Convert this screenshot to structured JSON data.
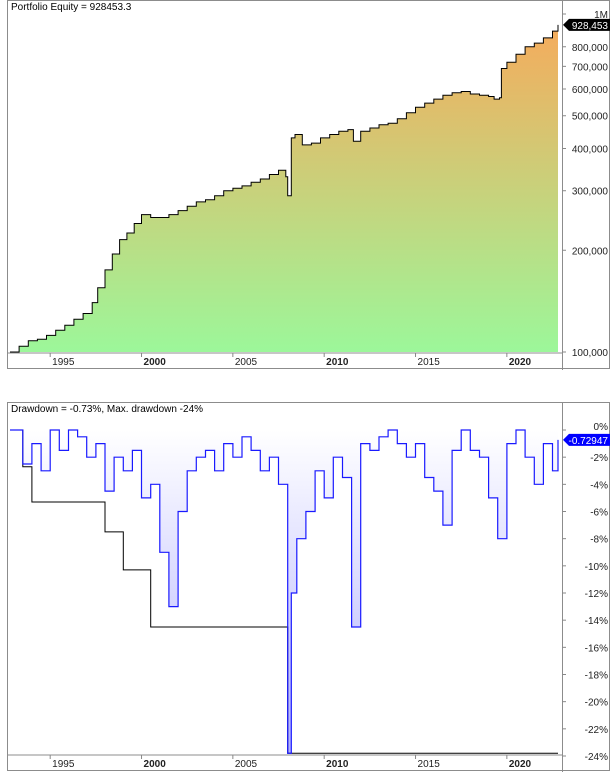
{
  "equity_panel": {
    "title": "Portfolio Equity = 928453.3",
    "last_value_label": "928,453",
    "last_value_bg": "#000000",
    "line_color": "#000000",
    "fill_top_color": "#f5ab5c",
    "fill_bottom_color": "#9cf79a",
    "y_ticks": [
      "1M",
      "800,000",
      "700,000",
      "600,000",
      "500,000",
      "400,000",
      "300,000",
      "200,000",
      "100,000"
    ]
  },
  "drawdown_panel": {
    "title": "Drawdown = -0.73%, Max. drawdown -24%",
    "last_value_label": "-0.72947",
    "last_value_bg": "#0000ff",
    "line_color": "#1a1aff",
    "fill_color": "#c8c8ff",
    "maxdd_line_color": "#000000",
    "y_ticks": [
      "0%",
      "-2%",
      "-4%",
      "-6%",
      "-8%",
      "-10%",
      "-12%",
      "-14%",
      "-16%",
      "-18%",
      "-20%",
      "-22%",
      "-24%"
    ]
  },
  "x_axis": {
    "labels": [
      {
        "text": "1995",
        "bold": false
      },
      {
        "text": "2000",
        "bold": true
      },
      {
        "text": "2005",
        "bold": false
      },
      {
        "text": "2010",
        "bold": true
      },
      {
        "text": "2015",
        "bold": false
      },
      {
        "text": "2020",
        "bold": true
      }
    ]
  },
  "chart_data": [
    {
      "type": "area",
      "title": "Portfolio Equity = 928453.3",
      "xlabel": "",
      "ylabel": "",
      "y_scale": "log",
      "ylim": [
        100000,
        1000000
      ],
      "xlim": [
        1992.8,
        2022.8
      ],
      "x_tick_labels": [
        "1995",
        "2000",
        "2005",
        "2010",
        "2015",
        "2020"
      ],
      "y_tick_labels": [
        "100,000",
        "200,000",
        "300,000",
        "400,000",
        "500,000",
        "600,000",
        "700,000",
        "800,000",
        "1M"
      ],
      "grid": false,
      "legend": "none",
      "last_value": 928453.3,
      "x": [
        1992.8,
        1993.3,
        1993.8,
        1994.3,
        1994.8,
        1995.3,
        1995.8,
        1996.3,
        1996.8,
        1997.3,
        1997.6,
        1998.0,
        1998.4,
        1998.8,
        1999.2,
        1999.6,
        2000.0,
        2000.5,
        2001.0,
        2001.5,
        2002.0,
        2002.5,
        2003.0,
        2003.5,
        2004.0,
        2004.5,
        2005.0,
        2005.5,
        2006.0,
        2006.5,
        2007.0,
        2007.5,
        2007.9,
        2008.0,
        2008.2,
        2008.4,
        2008.8,
        2009.3,
        2009.8,
        2010.3,
        2010.8,
        2011.3,
        2011.6,
        2012.0,
        2012.5,
        2013.0,
        2013.5,
        2014.0,
        2014.5,
        2015.0,
        2015.5,
        2016.0,
        2016.5,
        2017.0,
        2017.5,
        2018.0,
        2018.5,
        2019.0,
        2019.3,
        2019.6,
        2019.7,
        2020.0,
        2020.5,
        2021.0,
        2021.5,
        2022.0,
        2022.5,
        2022.8
      ],
      "series": [
        {
          "name": "Portfolio Equity",
          "values": [
            100000,
            104000,
            108000,
            109000,
            112000,
            116000,
            120000,
            125000,
            130000,
            140000,
            155000,
            175000,
            195000,
            215000,
            225000,
            240000,
            255000,
            250000,
            250000,
            255000,
            262000,
            270000,
            278000,
            282000,
            290000,
            300000,
            305000,
            310000,
            318000,
            325000,
            335000,
            345000,
            330000,
            290000,
            430000,
            440000,
            410000,
            415000,
            430000,
            440000,
            450000,
            455000,
            420000,
            450000,
            460000,
            470000,
            475000,
            490000,
            510000,
            530000,
            545000,
            560000,
            575000,
            585000,
            590000,
            580000,
            575000,
            570000,
            560000,
            565000,
            690000,
            720000,
            760000,
            800000,
            820000,
            850000,
            890000,
            928453
          ]
        }
      ]
    },
    {
      "type": "area",
      "title": "Drawdown = -0.73%, Max. drawdown -24%",
      "xlabel": "",
      "ylabel": "",
      "ylim": [
        -24,
        0
      ],
      "xlim": [
        1992.8,
        2022.8
      ],
      "x_tick_labels": [
        "1995",
        "2000",
        "2005",
        "2010",
        "2015",
        "2020"
      ],
      "y_tick_labels": [
        "0%",
        "-2%",
        "-4%",
        "-6%",
        "-8%",
        "-10%",
        "-12%",
        "-14%",
        "-16%",
        "-18%",
        "-20%",
        "-22%",
        "-24%"
      ],
      "grid": false,
      "legend": "none",
      "last_value": -0.72947,
      "x": [
        1992.8,
        1993.5,
        1994.0,
        1994.5,
        1995.0,
        1995.5,
        1996.0,
        1996.5,
        1997.0,
        1997.5,
        1998.0,
        1998.5,
        1999.0,
        1999.5,
        2000.0,
        2000.5,
        2001.0,
        2001.5,
        2002.0,
        2002.5,
        2003.0,
        2003.5,
        2004.0,
        2004.5,
        2005.0,
        2005.5,
        2006.0,
        2006.5,
        2007.0,
        2007.5,
        2008.0,
        2008.2,
        2008.5,
        2009.0,
        2009.5,
        2010.0,
        2010.5,
        2011.0,
        2011.5,
        2012.0,
        2012.5,
        2013.0,
        2013.5,
        2014.0,
        2014.5,
        2015.0,
        2015.5,
        2016.0,
        2016.5,
        2017.0,
        2017.5,
        2018.0,
        2018.5,
        2019.0,
        2019.5,
        2020.0,
        2020.5,
        2021.0,
        2021.5,
        2022.0,
        2022.5,
        2022.8
      ],
      "series": [
        {
          "name": "Drawdown (%)",
          "values": [
            0,
            -2.5,
            -1.0,
            -3.0,
            0,
            -1.5,
            0,
            -0.5,
            -2.0,
            -1.0,
            -4.5,
            -2.0,
            -3.0,
            -1.5,
            -5.0,
            -4.0,
            -9.0,
            -13.0,
            -6.0,
            -3.0,
            -2.0,
            -1.5,
            -3.0,
            -1.0,
            -2.0,
            -0.5,
            -1.5,
            -3.0,
            -2.0,
            -4.0,
            -23.8,
            -12.0,
            -8.0,
            -6.0,
            -3.0,
            -5.0,
            -2.0,
            -3.5,
            -14.5,
            -1.0,
            -1.5,
            -0.5,
            0,
            -1.0,
            -2.0,
            -1.0,
            -3.5,
            -4.5,
            -7.0,
            -1.5,
            0,
            -1.5,
            -2.0,
            -5.0,
            -8.0,
            -1.0,
            0,
            -2.0,
            -4.0,
            -1.0,
            -3.0,
            -0.73
          ]
        },
        {
          "name": "Max Drawdown (%)",
          "values": [
            0,
            -2.7,
            -5.3,
            -5.3,
            -5.3,
            -5.3,
            -5.3,
            -5.3,
            -5.3,
            -5.3,
            -7.5,
            -7.5,
            -10.3,
            -10.3,
            -10.3,
            -14.5,
            -14.5,
            -14.5,
            -14.5,
            -14.5,
            -14.5,
            -14.5,
            -14.5,
            -14.5,
            -14.5,
            -14.5,
            -14.5,
            -14.5,
            -14.5,
            -14.5,
            -23.8,
            -23.8,
            -23.8,
            -23.8,
            -23.8,
            -23.8,
            -23.8,
            -23.8,
            -23.8,
            -23.8,
            -23.8,
            -23.8,
            -23.8,
            -23.8,
            -23.8,
            -23.8,
            -23.8,
            -23.8,
            -23.8,
            -23.8,
            -23.8,
            -23.8,
            -23.8,
            -23.8,
            -23.8,
            -23.8,
            -23.8,
            -23.8,
            -23.8,
            -23.8,
            -23.8,
            -23.8
          ]
        }
      ]
    }
  ]
}
